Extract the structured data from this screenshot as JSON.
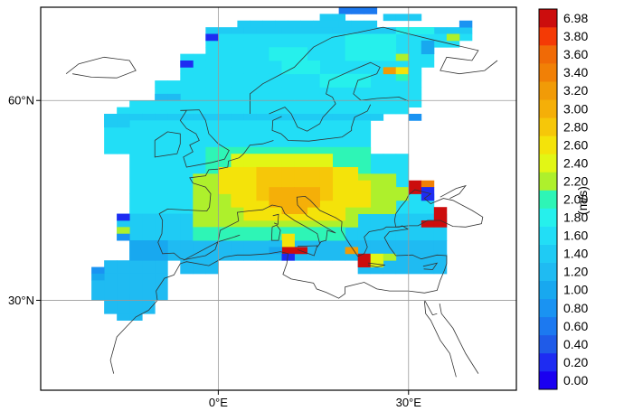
{
  "chart_data": {
    "type": "heatmap",
    "colorbar": {
      "unit_label": "(m/s)",
      "levels": [
        "0.00",
        "0.20",
        "0.40",
        "0.60",
        "0.80",
        "1.00",
        "1.20",
        "1.40",
        "1.60",
        "1.80",
        "2.00",
        "2.20",
        "2.40",
        "2.60",
        "2.80",
        "3.00",
        "3.20",
        "3.40",
        "3.60",
        "3.80",
        "6.98"
      ],
      "colors": [
        "#1a00f0",
        "#1e2cf2",
        "#1f5be8",
        "#1c79f0",
        "#1a93f2",
        "#18a8ef",
        "#1fbbf2",
        "#1fcbf4",
        "#22def6",
        "#26f0ec",
        "#2ef5b6",
        "#aef02c",
        "#e2f615",
        "#f4e30a",
        "#f6c709",
        "#f5af08",
        "#f19b07",
        "#f18006",
        "#f06a06",
        "#f43a05",
        "#cc0d0d"
      ]
    },
    "x_ticks": [
      {
        "lon": 0,
        "label": "0°E"
      },
      {
        "lon": 30,
        "label": "30°E"
      }
    ],
    "y_ticks": [
      {
        "lat": 60,
        "label": "60°N"
      },
      {
        "lat": 30,
        "label": "30°N"
      }
    ],
    "grid": true,
    "xlim": [
      -28,
      47
    ],
    "ylim": [
      16.5,
      74
    ],
    "bins": [
      {
        "rows": [
          [
            73,
            73
          ]
        ],
        "lon": [
          [
            19,
            25
          ]
        ],
        "v": 0.75
      },
      {
        "rows": [
          [
            72,
            72
          ]
        ],
        "lon": [
          [
            16,
            20
          ],
          [
            26,
            32
          ]
        ],
        "v": 1.5
      },
      {
        "rows": [
          [
            71,
            71
          ]
        ],
        "lon": [
          [
            3,
            24
          ]
        ],
        "v": 1.5
      },
      {
        "rows": [
          [
            70,
            70
          ]
        ],
        "lon": [
          [
            -2,
            40
          ]
        ],
        "v": 1.5
      },
      {
        "rows": [
          [
            69,
            69
          ]
        ],
        "lon": [
          [
            -2,
            40
          ]
        ],
        "v": 1.6
      },
      {
        "rows": [
          [
            68,
            68
          ]
        ],
        "lon": [
          [
            -2,
            38
          ]
        ],
        "v": 1.6
      },
      {
        "rows": [
          [
            67,
            67
          ]
        ],
        "lon": [
          [
            -2,
            34
          ]
        ],
        "v": 1.6
      },
      {
        "rows": [
          [
            66,
            66
          ]
        ],
        "lon": [
          [
            -6,
            34
          ]
        ],
        "v": 1.6
      },
      {
        "rows": [
          [
            65,
            65
          ]
        ],
        "lon": [
          [
            -6,
            34
          ]
        ],
        "v": 1.6
      },
      {
        "rows": [
          [
            64,
            64
          ]
        ],
        "lon": [
          [
            -6,
            32
          ]
        ],
        "v": 1.6
      },
      {
        "rows": [
          [
            63,
            63
          ]
        ],
        "lon": [
          [
            -6,
            32
          ]
        ],
        "v": 1.6
      },
      {
        "rows": [
          [
            62,
            62
          ]
        ],
        "lon": [
          [
            -10,
            32
          ]
        ],
        "v": 1.6
      },
      {
        "rows": [
          [
            61,
            61
          ]
        ],
        "lon": [
          [
            -10,
            32
          ]
        ],
        "v": 1.6
      },
      {
        "rows": [
          [
            60,
            60
          ]
        ],
        "lon": [
          [
            -10,
            32
          ]
        ],
        "v": 1.6
      },
      {
        "rows": [
          [
            59,
            59
          ]
        ],
        "lon": [
          [
            -14,
            32
          ]
        ],
        "v": 1.6
      },
      {
        "rows": [
          [
            58,
            58
          ]
        ],
        "lon": [
          [
            -16,
            30
          ]
        ],
        "v": 1.6
      },
      {
        "rows": [
          [
            57,
            57
          ]
        ],
        "lon": [
          [
            -18,
            26
          ]
        ],
        "v": 1.5
      },
      {
        "rows": [
          [
            56,
            52
          ]
        ],
        "lon": [
          [
            -18,
            24
          ]
        ],
        "v": 1.6
      },
      {
        "rows": [
          [
            51,
            46
          ]
        ],
        "lon": [
          [
            -14,
            30
          ]
        ],
        "v": 1.6
      },
      {
        "rows": [
          [
            45,
            43
          ]
        ],
        "lon": [
          [
            -14,
            34
          ]
        ],
        "v": 1.6
      },
      {
        "rows": [
          [
            42,
            39
          ]
        ],
        "lon": [
          [
            -16,
            36
          ]
        ],
        "v": 1.5
      },
      {
        "rows": [
          [
            38,
            36
          ]
        ],
        "lon": [
          [
            -14,
            36
          ]
        ],
        "v": 1.3
      },
      {
        "rows": [
          [
            35,
            34
          ]
        ],
        "lon": [
          [
            -18,
            -8
          ],
          [
            -6,
            0
          ]
        ],
        "v": 1.2
      },
      {
        "rows": [
          [
            33,
            30
          ]
        ],
        "lon": [
          [
            -18,
            -8
          ]
        ],
        "v": 1.2
      },
      {
        "rows": [
          [
            29,
            28
          ]
        ],
        "lon": [
          [
            -18,
            -10
          ]
        ],
        "v": 1.2
      },
      {
        "rows": [
          [
            52,
            49
          ]
        ],
        "lon": [
          [
            -2,
            24
          ]
        ],
        "v": 2.1
      },
      {
        "rows": [
          [
            48,
            47
          ]
        ],
        "lon": [
          [
            -4,
            28
          ]
        ],
        "v": 2.3
      },
      {
        "rows": [
          [
            46,
            45
          ]
        ],
        "lon": [
          [
            -4,
            30
          ]
        ],
        "v": 2.3
      },
      {
        "rows": [
          [
            44,
            43
          ]
        ],
        "lon": [
          [
            -4,
            28
          ]
        ],
        "v": 2.3
      },
      {
        "rows": [
          [
            42,
            41
          ]
        ],
        "lon": [
          [
            -4,
            22
          ]
        ],
        "v": 2.2
      },
      {
        "rows": [
          [
            40,
            39
          ]
        ],
        "lon": [
          [
            -4,
            20
          ]
        ],
        "v": 2.1
      },
      {
        "rows": [
          [
            51,
            50
          ]
        ],
        "lon": [
          [
            2,
            18
          ]
        ],
        "v": 2.5
      },
      {
        "rows": [
          [
            49,
            48
          ]
        ],
        "lon": [
          [
            0,
            22
          ]
        ],
        "v": 2.6
      },
      {
        "rows": [
          [
            47,
            46
          ]
        ],
        "lon": [
          [
            0,
            24
          ]
        ],
        "v": 2.7
      },
      {
        "rows": [
          [
            45,
            44
          ]
        ],
        "lon": [
          [
            2,
            24
          ]
        ],
        "v": 2.7
      },
      {
        "rows": [
          [
            43,
            42
          ]
        ],
        "lon": [
          [
            4,
            20
          ]
        ],
        "v": 2.6
      },
      {
        "rows": [
          [
            49,
            45
          ]
        ],
        "lon": [
          [
            6,
            18
          ]
        ],
        "v": 2.85
      },
      {
        "rows": [
          [
            46,
            44
          ]
        ],
        "lon": [
          [
            8,
            16
          ]
        ],
        "v": 3.0
      },
      {
        "rows": [
          [
            44,
            43
          ]
        ],
        "lon": [
          [
            10,
            14
          ]
        ],
        "v": 3.1
      },
      {
        "rows": [
          [
            67,
            67
          ],
          [
            66,
            66
          ]
        ],
        "lon": [
          [
            8,
            14
          ]
        ],
        "v": 1.8
      },
      {
        "rows": [
          [
            65,
            64
          ]
        ],
        "lon": [
          [
            10,
            16
          ]
        ],
        "v": 1.8
      },
      {
        "rows": [
          [
            63,
            62
          ]
        ],
        "lon": [
          [
            16,
            24
          ]
        ],
        "v": 1.8
      },
      {
        "rows": [
          [
            69,
            68
          ]
        ],
        "lon": [
          [
            20,
            28
          ]
        ],
        "v": 1.8
      },
      {
        "rows": [
          [
            67,
            66
          ]
        ],
        "lon": [
          [
            20,
            28
          ]
        ],
        "v": 1.85
      },
      {
        "rows": [
          [
            63,
            63
          ]
        ],
        "lon": [
          [
            28,
            30
          ]
        ],
        "v": 2.0
      },
      {
        "rows": [
          [
            60,
            60
          ]
        ],
        "lon": [
          [
            -10,
            -6
          ]
        ],
        "v": 1.3
      },
      {
        "rows": [
          [
            57,
            56
          ]
        ],
        "lon": [
          [
            -18,
            -14
          ]
        ],
        "v": 1.4
      },
      {
        "rows": [
          [
            38,
            36
          ]
        ],
        "lon": [
          [
            -14,
            -8
          ]
        ],
        "v": 1.15
      },
      {
        "rows": [
          [
            36,
            34
          ]
        ],
        "lon": [
          [
            22,
            36
          ]
        ],
        "v": 1.3
      },
      {
        "rows": [
          [
            70,
            70
          ]
        ],
        "lon": [
          [
            28,
            34
          ]
        ],
        "v": 1.8
      },
      {
        "rows": [
          [
            69,
            69
          ]
        ],
        "lon": [
          [
            36,
            38
          ]
        ],
        "v": 2.2
      },
      {
        "rows": [
          [
            71,
            71
          ]
        ],
        "lon": [
          [
            38,
            40
          ]
        ],
        "v": 0.8
      },
      {
        "rows": [
          [
            68,
            67
          ]
        ],
        "lon": [
          [
            32,
            34
          ]
        ],
        "v": 1.0
      },
      {
        "rows": [
          [
            64,
            64
          ]
        ],
        "lon": [
          [
            26,
            28
          ]
        ],
        "v": 3.2
      },
      {
        "rows": [
          [
            64,
            64
          ]
        ],
        "lon": [
          [
            28,
            30
          ]
        ],
        "v": 2.6
      },
      {
        "rows": [
          [
            66,
            66
          ]
        ],
        "lon": [
          [
            28,
            30
          ]
        ],
        "v": 2.2
      },
      {
        "rows": [
          [
            57,
            57
          ]
        ],
        "lon": [
          [
            30,
            32
          ]
        ],
        "v": 0.8
      },
      {
        "rows": [
          [
            69,
            69
          ]
        ],
        "lon": [
          [
            -2,
            0
          ]
        ],
        "v": 0.2
      },
      {
        "rows": [
          [
            65,
            65
          ]
        ],
        "lon": [
          [
            -6,
            -4
          ]
        ],
        "v": 0.2
      },
      {
        "rows": [
          [
            47,
            46
          ]
        ],
        "lon": [
          [
            30,
            32
          ]
        ],
        "v": 6.98
      },
      {
        "rows": [
          [
            47,
            47
          ]
        ],
        "lon": [
          [
            32,
            34
          ]
        ],
        "v": 3.4
      },
      {
        "rows": [
          [
            46,
            45
          ]
        ],
        "lon": [
          [
            32,
            34
          ]
        ],
        "v": 0.3
      },
      {
        "rows": [
          [
            43,
            42
          ]
        ],
        "lon": [
          [
            34,
            36
          ]
        ],
        "v": 6.98
      },
      {
        "rows": [
          [
            41,
            41
          ]
        ],
        "lon": [
          [
            32,
            36
          ]
        ],
        "v": 6.98
      },
      {
        "rows": [
          [
            42,
            42
          ]
        ],
        "lon": [
          [
            -16,
            -14
          ]
        ],
        "v": 0.2
      },
      {
        "rows": [
          [
            40,
            40
          ]
        ],
        "lon": [
          [
            -16,
            -14
          ]
        ],
        "v": 2.2
      },
      {
        "rows": [
          [
            39,
            39
          ]
        ],
        "lon": [
          [
            -16,
            -14
          ]
        ],
        "v": 0.8
      },
      {
        "rows": [
          [
            39,
            38
          ]
        ],
        "lon": [
          [
            10,
            12
          ]
        ],
        "v": 2.6
      },
      {
        "rows": [
          [
            38,
            38
          ]
        ],
        "lon": [
          [
            8,
            10
          ]
        ],
        "v": 1.2
      },
      {
        "rows": [
          [
            37,
            37
          ]
        ],
        "lon": [
          [
            10,
            14
          ]
        ],
        "v": 6.98
      },
      {
        "rows": [
          [
            37,
            37
          ]
        ],
        "lon": [
          [
            8,
            10
          ]
        ],
        "v": 1.0
      },
      {
        "rows": [
          [
            36,
            36
          ]
        ],
        "lon": [
          [
            10,
            12
          ]
        ],
        "v": 0.3
      },
      {
        "rows": [
          [
            37,
            37
          ]
        ],
        "lon": [
          [
            20,
            22
          ]
        ],
        "v": 3.2
      },
      {
        "rows": [
          [
            36,
            35
          ]
        ],
        "lon": [
          [
            22,
            24
          ]
        ],
        "v": 6.98
      },
      {
        "rows": [
          [
            36,
            35
          ]
        ],
        "lon": [
          [
            24,
            26
          ]
        ],
        "v": 2.4
      },
      {
        "rows": [
          [
            36,
            36
          ]
        ],
        "lon": [
          [
            26,
            28
          ]
        ],
        "v": 2.2
      },
      {
        "rows": [
          [
            34,
            34
          ]
        ],
        "lon": [
          [
            -20,
            -18
          ]
        ],
        "v": 0.8
      },
      {
        "rows": [
          [
            33,
            33
          ]
        ],
        "lon": [
          [
            -20,
            -18
          ]
        ],
        "v": 1.1
      },
      {
        "rows": [
          [
            32,
            30
          ]
        ],
        "lon": [
          [
            -20,
            -18
          ]
        ],
        "v": 1.2
      },
      {
        "rows": [
          [
            30,
            30
          ]
        ],
        "lon": [
          [
            -16,
            -14
          ]
        ],
        "v": 1.2
      },
      {
        "rows": [
          [
            27,
            27
          ]
        ],
        "lon": [
          [
            -16,
            -12
          ]
        ],
        "v": 1.2
      }
    ]
  }
}
